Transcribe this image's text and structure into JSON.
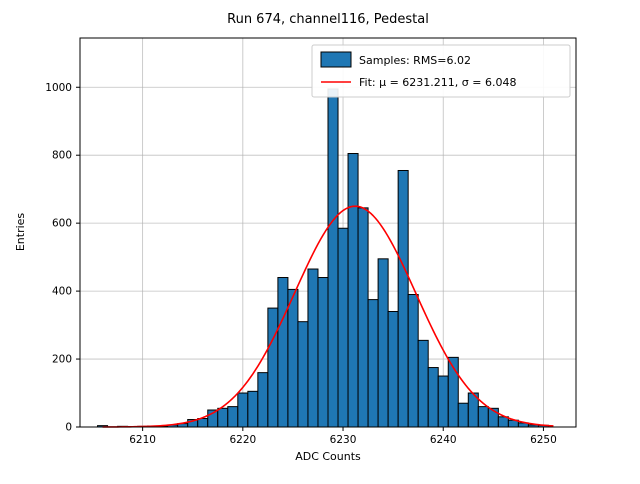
{
  "figure": {
    "title": "Run 674, channel116, Pedestal",
    "xlabel": "ADC Counts",
    "ylabel": "Entries",
    "legend": [
      {
        "type": "patch",
        "color": "#1f77b4",
        "label": "Samples: RMS=6.02"
      },
      {
        "type": "line",
        "color": "#ff0000",
        "label": "Fit: μ = 6231.211, σ = 6.048"
      }
    ]
  },
  "chart_data": {
    "type": "bar",
    "title": "Run 674, channel116, Pedestal",
    "xlabel": "ADC Counts",
    "ylabel": "Entries",
    "xlim": [
      6203.75,
      6253.25
    ],
    "ylim": [
      0,
      1145
    ],
    "xticks": [
      6210,
      6220,
      6230,
      6240,
      6250
    ],
    "yticks": [
      0,
      200,
      400,
      600,
      800,
      1000
    ],
    "grid": true,
    "legend_position": "upper right",
    "bar_color": "#1f77b4",
    "bar_edge_color": "#000000",
    "grid_color": "#b0b0b0",
    "categories": [
      6206,
      6207,
      6208,
      6209,
      6210,
      6211,
      6212,
      6213,
      6214,
      6215,
      6216,
      6217,
      6218,
      6219,
      6220,
      6221,
      6222,
      6223,
      6224,
      6225,
      6226,
      6227,
      6228,
      6229,
      6230,
      6231,
      6232,
      6233,
      6234,
      6235,
      6236,
      6237,
      6238,
      6239,
      6240,
      6241,
      6242,
      6243,
      6244,
      6245,
      6246,
      6247,
      6248,
      6249,
      6250
    ],
    "values": [
      4,
      0,
      2,
      0,
      2,
      3,
      2,
      6,
      10,
      22,
      25,
      50,
      55,
      60,
      100,
      105,
      160,
      350,
      440,
      405,
      310,
      465,
      440,
      995,
      585,
      805,
      645,
      375,
      495,
      340,
      755,
      390,
      255,
      175,
      150,
      205,
      70,
      100,
      60,
      55,
      30,
      20,
      12,
      6,
      5
    ],
    "rms": 6.02,
    "fit": {
      "type": "gaussian",
      "mu": 6231.211,
      "sigma": 6.048,
      "amplitude": 650,
      "color": "#ff0000",
      "x_range": [
        6206,
        6251
      ]
    }
  }
}
